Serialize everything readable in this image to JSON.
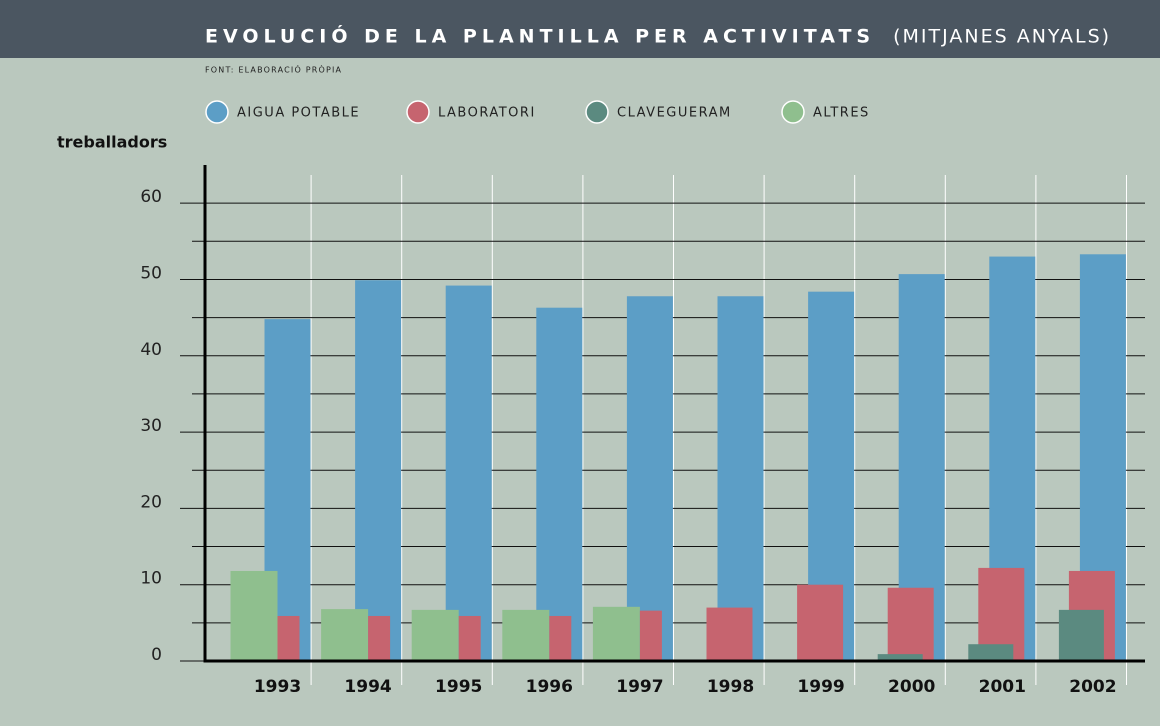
{
  "chart_data": {
    "type": "bar",
    "title": "EVOLUCIÓ DE LA PLANTILLA PER ACTIVITATS",
    "title_suffix": "(MITJANES ANYALS)",
    "source": "FONT: ELABORACIÓ PRÒPIA",
    "ylabel": "treballadors",
    "categories": [
      "1993",
      "1994",
      "1995",
      "1996",
      "1997",
      "1998",
      "1999",
      "2000",
      "2001",
      "2002"
    ],
    "series": [
      {
        "name": "AIGUA POTABLE",
        "color": "#5c9ec6",
        "values": [
          44.8,
          49.9,
          49.2,
          46.3,
          47.8,
          47.8,
          48.4,
          50.7,
          53.0,
          53.3
        ]
      },
      {
        "name": "LABORATORI",
        "color": "#c6646f",
        "values": [
          5.9,
          5.9,
          5.9,
          5.9,
          6.6,
          7.0,
          10.0,
          9.6,
          12.2,
          11.8
        ]
      },
      {
        "name": "CLAVEGUERAM",
        "color": "#5b8a80",
        "values": [
          null,
          null,
          null,
          null,
          null,
          null,
          null,
          0.9,
          2.2,
          6.7
        ]
      },
      {
        "name": "ALTRES",
        "color": "#8fbf8e",
        "values": [
          11.8,
          6.8,
          6.7,
          6.7,
          7.1,
          null,
          null,
          null,
          null,
          null
        ]
      }
    ],
    "ylim": [
      0,
      65
    ],
    "yticks": [
      0,
      10,
      20,
      30,
      40,
      50,
      60
    ],
    "minor_yticks": [
      5,
      15,
      25,
      35,
      45,
      55
    ],
    "grid": true
  }
}
